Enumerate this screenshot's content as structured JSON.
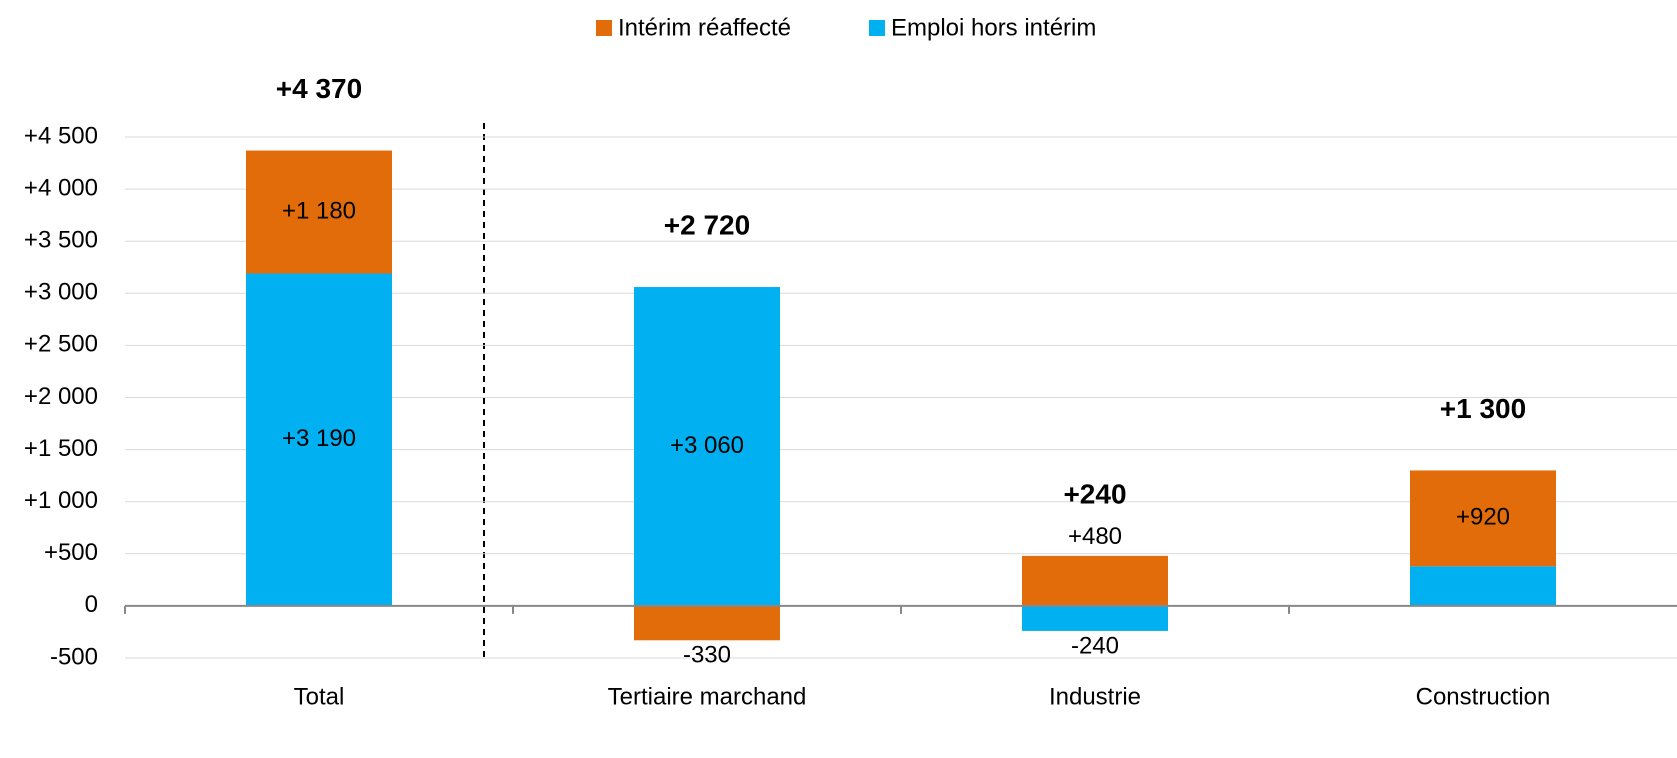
{
  "chart_data": {
    "type": "stacked_bar",
    "categories": [
      "Total",
      "Tertiaire marchand",
      "Industrie",
      "Construction"
    ],
    "series": [
      {
        "name": "Emploi hors intérim",
        "color": "#00b0f0",
        "values": [
          3190,
          3060,
          -240,
          380
        ],
        "value_labels": [
          "+3 190",
          "+3 060",
          "-240",
          "+380"
        ]
      },
      {
        "name": "Intérim réaffecté",
        "color": "#e36c0a",
        "values": [
          1180,
          -330,
          480,
          920
        ],
        "value_labels": [
          "+1 180",
          "-330",
          "+480",
          "+920"
        ]
      }
    ],
    "totals": [
      {
        "value": 4370,
        "label": "+4 370"
      },
      {
        "value": 2720,
        "label": "+2 720"
      },
      {
        "value": 240,
        "label": "+240"
      },
      {
        "value": 1300,
        "label": "+1 300"
      }
    ],
    "legend_order": [
      1,
      0
    ],
    "ylim": [
      -500,
      4500
    ],
    "yticks": [
      -500,
      0,
      {
        "value": 500,
        "label": "+500"
      },
      {
        "value": 1000,
        "label": "+1 000"
      },
      {
        "value": 1500,
        "label": "+1 500"
      },
      {
        "value": 2000,
        "label": "+2 000"
      },
      {
        "value": 2500,
        "label": "+2 500"
      },
      {
        "value": 3000,
        "label": "+3 000"
      },
      {
        "value": 3500,
        "label": "+3 500"
      },
      {
        "value": 4000,
        "label": "+4 000"
      },
      {
        "value": 4500,
        "label": "+4 500"
      }
    ],
    "grid": true,
    "legend": "top"
  }
}
